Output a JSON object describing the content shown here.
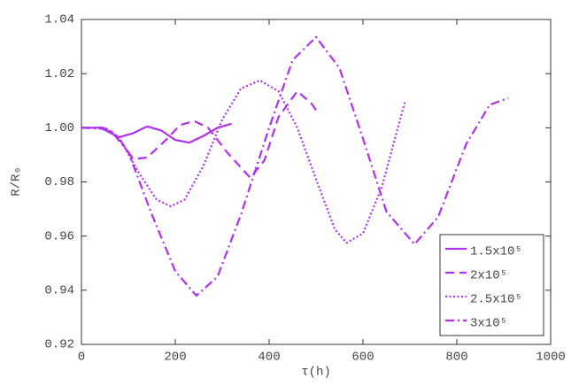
{
  "chart_data": {
    "type": "line",
    "xlabel": "τ(h)",
    "ylabel": "R/R₀",
    "xlim": [
      0,
      1000
    ],
    "xticks": [
      0,
      200,
      400,
      600,
      800,
      1000
    ],
    "ylim": [
      0.92,
      1.04
    ],
    "yticks": [
      0.92,
      0.94,
      0.96,
      0.98,
      {
        "value": 1,
        "label": "1.00"
      },
      1.02,
      1.04
    ],
    "legend": "lower right",
    "series": [
      {
        "name": "1.5x10⁵",
        "color": "#b030f0",
        "dash": "solid",
        "x": [
          0,
          40,
          80,
          110,
          140,
          170,
          200,
          230,
          260,
          290,
          320
        ],
        "values": [
          1.0,
          1.0,
          0.9965,
          0.998,
          1.0005,
          0.999,
          0.9955,
          0.9945,
          0.997,
          1.0,
          1.0015
        ]
      },
      {
        "name": "2x10⁵",
        "color": "#b030f0",
        "dash": "dashed",
        "x": [
          0,
          50,
          80,
          110,
          140,
          180,
          210,
          240,
          270,
          310,
          360,
          390,
          420,
          460,
          490,
          500
        ],
        "values": [
          1.0,
          1.0,
          0.996,
          0.9885,
          0.989,
          0.9955,
          1.001,
          1.0025,
          1.0,
          0.991,
          0.9815,
          0.988,
          1.004,
          1.0135,
          1.009,
          1.0065
        ]
      },
      {
        "name": "2.5x10⁵",
        "color": "#b030f0",
        "dash": "dotted",
        "x": [
          0,
          50,
          80,
          120,
          160,
          190,
          220,
          260,
          300,
          340,
          380,
          420,
          460,
          500,
          540,
          565,
          600,
          640,
          690
        ],
        "values": [
          1.0,
          1.0,
          0.9965,
          0.984,
          0.9735,
          0.971,
          0.9735,
          0.986,
          1.003,
          1.0145,
          1.0175,
          1.0135,
          1.0,
          0.981,
          0.9625,
          0.9575,
          0.961,
          0.978,
          1.01
        ]
      },
      {
        "name": "3x10⁵",
        "color": "#b030f0",
        "dash": "dashdot",
        "x": [
          0,
          60,
          100,
          150,
          200,
          245,
          290,
          340,
          400,
          450,
          500,
          550,
          600,
          650,
          710,
          760,
          820,
          870,
          910
        ],
        "values": [
          1.0,
          0.9995,
          0.991,
          0.968,
          0.947,
          0.938,
          0.945,
          0.968,
          1.0,
          1.025,
          1.0335,
          1.022,
          0.996,
          0.969,
          0.957,
          0.967,
          0.994,
          1.0085,
          1.011
        ]
      }
    ]
  }
}
